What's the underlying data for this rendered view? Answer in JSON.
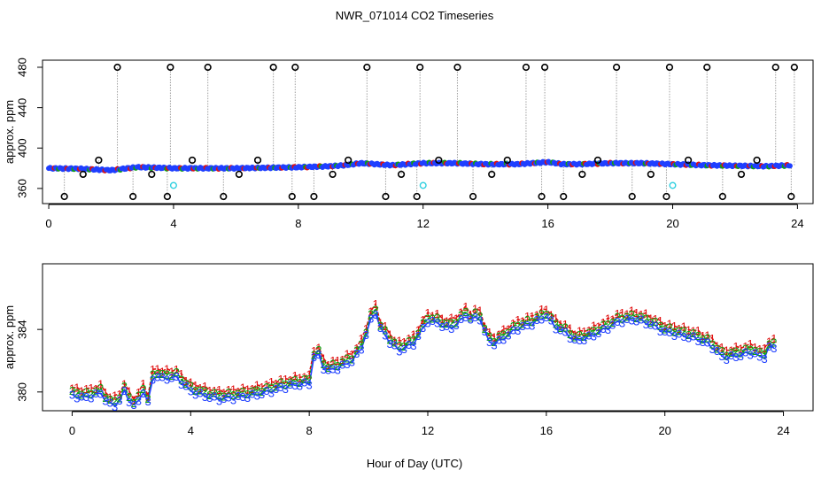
{
  "title": "NWR_071014  CO2 Timeseries",
  "xlabel": "Hour of Day (UTC)",
  "colors": {
    "axis": "#000000",
    "flask": "#000000",
    "series_blue": "#1f3fff",
    "series_red": "#e01010",
    "series_green": "#10a010",
    "cyan": "#30d0e0",
    "connector": "#a0a0a0"
  },
  "chart_data": [
    {
      "type": "scatter",
      "title": "NWR_071014  CO2 Timeseries",
      "ylabel": "approx. ppm",
      "xlabel": "",
      "xlim": [
        -0.2,
        24.5
      ],
      "ylim": [
        345,
        487
      ],
      "x_ticks": [
        0,
        4,
        8,
        12,
        16,
        20,
        24
      ],
      "x_tick_labels": [
        "0",
        "4",
        "8",
        "12",
        "16",
        "20",
        "24"
      ],
      "y_ticks": [
        360,
        400,
        440,
        480
      ],
      "y_tick_labels": [
        "360",
        "400",
        "440",
        "480"
      ],
      "baseline": {
        "x": [
          0,
          1,
          2,
          2.8,
          3,
          4,
          5,
          6,
          7,
          8,
          8.5,
          9,
          9.5,
          10,
          10.5,
          11,
          12,
          13,
          14,
          15,
          16,
          16.5,
          17,
          18,
          19,
          20,
          21,
          22,
          23,
          23.8
        ],
        "y": [
          380,
          379.5,
          378,
          381,
          381,
          380,
          380,
          380,
          380.5,
          381,
          381.5,
          382,
          383,
          385,
          384,
          383,
          385,
          385,
          384,
          384,
          386,
          384,
          384,
          385,
          385,
          384,
          383,
          382.5,
          382,
          383
        ]
      },
      "flask_points": {
        "x": [
          0.5,
          1.1,
          1.6,
          2.2,
          2.7,
          3.3,
          3.8,
          3.9,
          4.6,
          5.1,
          5.6,
          6.1,
          6.7,
          7.2,
          7.8,
          7.9,
          8.5,
          9.1,
          9.6,
          10.2,
          10.8,
          11.3,
          11.8,
          11.9,
          12.5,
          13.1,
          13.6,
          14.2,
          14.7,
          15.3,
          15.8,
          15.9,
          16.5,
          17.1,
          17.6,
          18.2,
          18.7,
          19.3,
          19.8,
          19.9,
          20.5,
          21.1,
          21.6,
          22.2,
          22.7,
          23.3,
          23.8,
          23.9
        ],
        "y": [
          352,
          374,
          388,
          480,
          352,
          374,
          352,
          480,
          388,
          480,
          352,
          374,
          388,
          480,
          352,
          480,
          352,
          374,
          388,
          480,
          352,
          374,
          352,
          480,
          388,
          480,
          352,
          374,
          388,
          480,
          352,
          480,
          352,
          374,
          388,
          480,
          352,
          374,
          352,
          480,
          388,
          480,
          352,
          374,
          388,
          480,
          352,
          480
        ]
      },
      "cyan_points": {
        "x": [
          4.0,
          12.0,
          20.0
        ],
        "y": [
          363,
          363,
          363
        ]
      }
    },
    {
      "type": "line",
      "title": "",
      "ylabel": "approx. ppm",
      "xlabel": "Hour of Day (UTC)",
      "xlim": [
        -1,
        25
      ],
      "ylim": [
        378.8,
        388.2
      ],
      "x_ticks": [
        0,
        4,
        8,
        12,
        16,
        20,
        24
      ],
      "x_tick_labels": [
        "0",
        "4",
        "8",
        "12",
        "16",
        "20",
        "24"
      ],
      "y_ticks": [
        380,
        384
      ],
      "y_tick_labels": [
        "380",
        "384"
      ],
      "series": [
        {
          "name": "1",
          "marker": "1",
          "color": "#e01010"
        },
        {
          "name": "2",
          "marker": "2",
          "color": "#10a010"
        },
        {
          "name": "3",
          "marker": "3",
          "color": "#1f3fff"
        }
      ],
      "profile": {
        "x": [
          0,
          0.5,
          1,
          1.2,
          1.5,
          1.8,
          2.0,
          2.2,
          2.4,
          2.6,
          2.75,
          3.0,
          3.5,
          4,
          4.5,
          5,
          5.5,
          6,
          6.5,
          7,
          7.5,
          8,
          8.1,
          8.25,
          8.4,
          8.6,
          9,
          9.5,
          9.8,
          10,
          10.2,
          10.4,
          10.7,
          11,
          11.5,
          12,
          12.3,
          12.7,
          13,
          13.3,
          13.5,
          13.7,
          14,
          14.2,
          14.5,
          15,
          15.5,
          16,
          16.3,
          16.6,
          17,
          17.5,
          18,
          18.5,
          19,
          19.5,
          20,
          20.5,
          21,
          21.5,
          22,
          22.5,
          23,
          23.3,
          23.6,
          23.8
        ],
        "y": [
          380,
          379.9,
          380.2,
          379.5,
          379.4,
          380.4,
          379.3,
          379.5,
          380.3,
          379.4,
          381.5,
          381.1,
          381.2,
          380.3,
          380,
          379.8,
          379.9,
          380,
          380.2,
          380.5,
          380.7,
          380.8,
          382.1,
          383.1,
          382,
          381.6,
          381.8,
          382.3,
          383.2,
          384.4,
          385.6,
          384.3,
          383.5,
          382.9,
          383.3,
          384.8,
          384.7,
          384.3,
          384.6,
          385.2,
          384.7,
          385.3,
          383.6,
          383.3,
          383.6,
          384.3,
          384.6,
          385.1,
          384.4,
          384.1,
          383.5,
          383.8,
          384.3,
          384.8,
          384.9,
          384.6,
          384.1,
          383.9,
          383.7,
          383.3,
          382.4,
          382.6,
          382.8,
          382.3,
          383.4,
          382.6
        ]
      }
    }
  ]
}
